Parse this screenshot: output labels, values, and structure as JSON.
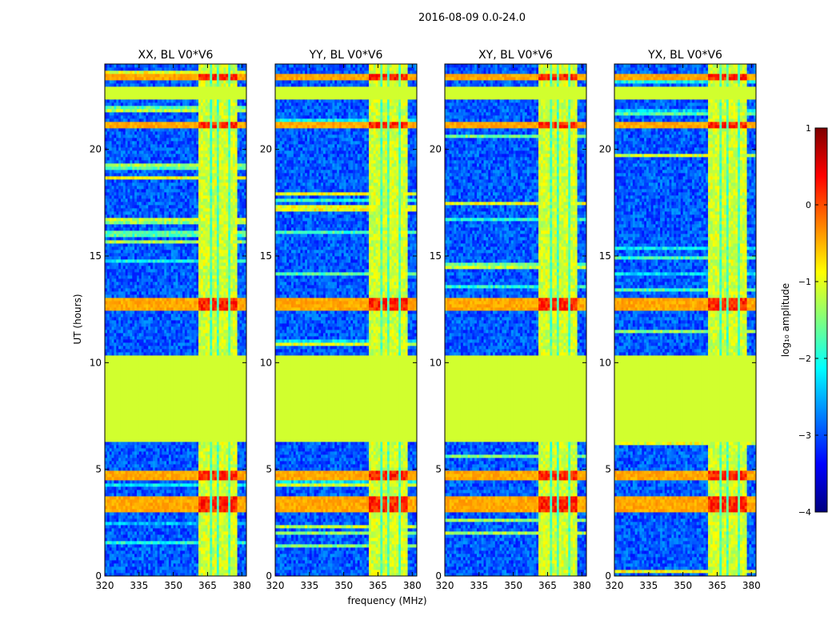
{
  "figure": {
    "title": "2016-08-09 0.0-24.0",
    "xlabel": "frequency (MHz)",
    "ylabel": "UT (hours)"
  },
  "colorbar": {
    "label": "log₁₀ amplitude",
    "range": [
      -4,
      1
    ],
    "ticks": [
      -4,
      -3,
      -2,
      -1,
      0,
      1
    ],
    "tick_labels": [
      "−4",
      "−3",
      "−2",
      "−1",
      "0",
      "1"
    ],
    "colormap": "jet",
    "jet_colors": [
      "#00007f",
      "#0000ff",
      "#007fff",
      "#00ffff",
      "#7fff7f",
      "#ffff00",
      "#ff7f00",
      "#ff0000",
      "#7f0000"
    ]
  },
  "chart_data": {
    "type": "heatmap",
    "xlim": [
      320,
      382
    ],
    "ylim": [
      0,
      24
    ],
    "xticks": [
      320,
      335,
      350,
      365,
      380
    ],
    "yticks": [
      0,
      5,
      10,
      15,
      20
    ],
    "flagged_value": -1.1,
    "gaps_hours": [
      [
        6.3,
        10.4
      ],
      [
        16.9,
        17.0
      ],
      [
        22.4,
        23.0
      ]
    ],
    "rfi_band_mhz": [
      361,
      378
    ],
    "rfi_channels_mhz": [
      [
        361.3,
        366.5
      ],
      [
        366.9,
        369.4
      ],
      [
        369.7,
        374.2
      ],
      [
        374.7,
        377.9
      ]
    ],
    "strong_rfi_hours": [
      [
        12.5,
        13.1
      ],
      [
        3.0,
        3.7
      ],
      [
        4.5,
        4.9
      ],
      [
        21.0,
        21.3
      ],
      [
        23.2,
        23.5
      ]
    ],
    "panels": [
      {
        "title": "XX, BL V0*V6",
        "pol": "XX",
        "baseline": "V0*V6"
      },
      {
        "title": "YY, BL V0*V6",
        "pol": "YY",
        "baseline": "V0*V6"
      },
      {
        "title": "XY, BL V0*V6",
        "pol": "XY",
        "baseline": "V0*V6"
      },
      {
        "title": "YX, BL V0*V6",
        "pol": "YX",
        "baseline": "V0*V6"
      }
    ]
  }
}
